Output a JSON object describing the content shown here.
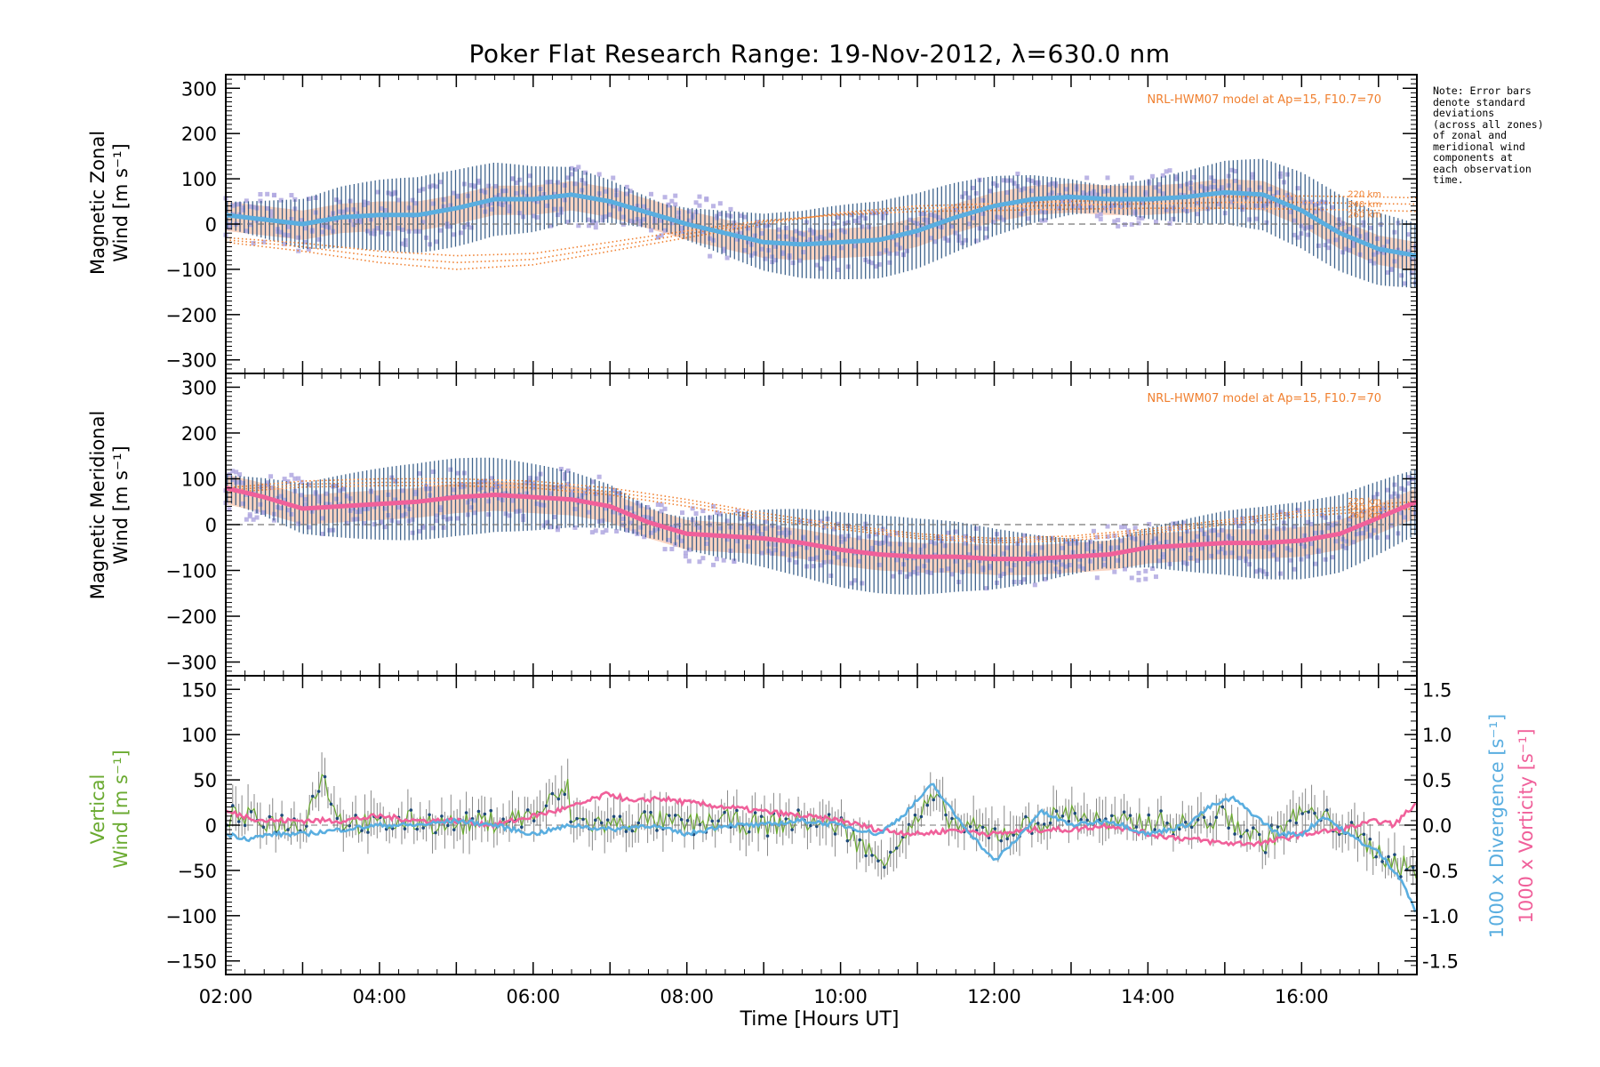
{
  "chart_data": [
    {
      "panel": "top",
      "type": "line",
      "title": "Poker Flat Research Range: 19-Nov-2012, λ=630.0 nm",
      "ylabel_line1": "Magnetic Zonal",
      "ylabel_line2": "Wind [m s⁻¹]",
      "model_label": "NRL-HWM07 model at Ap=15, F10.7=70",
      "altitude_labels": [
        "220 km",
        "240 km",
        "260 km"
      ],
      "ylim": [
        -330,
        330
      ],
      "yticks": [
        -300,
        -200,
        -100,
        0,
        100,
        200,
        300
      ],
      "xlim": [
        2.0,
        17.5
      ],
      "series": [
        {
          "role": "mean wind",
          "color": "#5aaee0",
          "x": [
            2.0,
            2.5,
            3.0,
            3.5,
            4.0,
            4.5,
            5.0,
            5.5,
            6.0,
            6.5,
            7.0,
            7.5,
            8.0,
            8.5,
            9.0,
            9.5,
            10.0,
            10.5,
            11.0,
            11.5,
            12.0,
            12.5,
            13.0,
            13.5,
            14.0,
            14.5,
            15.0,
            15.5,
            16.0,
            16.5,
            17.0,
            17.5
          ],
          "y": [
            20,
            10,
            0,
            15,
            20,
            20,
            35,
            55,
            55,
            65,
            50,
            25,
            0,
            -20,
            -40,
            -45,
            -40,
            -35,
            -15,
            15,
            40,
            55,
            60,
            55,
            55,
            60,
            70,
            65,
            30,
            -20,
            -55,
            -70
          ]
        },
        {
          "role": "HWM07 220 km",
          "color": "#f08030",
          "x": [
            2.0,
            3.0,
            4.0,
            5.0,
            6.0,
            7.0,
            8.0,
            9.0,
            10.0,
            11.0,
            12.0,
            13.0,
            14.0,
            15.0,
            16.0,
            17.0,
            17.5
          ],
          "y": [
            -40,
            -60,
            -85,
            -100,
            -90,
            -60,
            -30,
            0,
            25,
            40,
            45,
            50,
            55,
            60,
            62,
            60,
            58
          ]
        },
        {
          "role": "HWM07 240 km",
          "color": "#f08030",
          "x": [
            2.0,
            3.0,
            4.0,
            5.0,
            6.0,
            7.0,
            8.0,
            9.0,
            10.0,
            11.0,
            12.0,
            13.0,
            14.0,
            15.0,
            16.0,
            17.0,
            17.5
          ],
          "y": [
            -35,
            -50,
            -72,
            -85,
            -78,
            -50,
            -22,
            5,
            22,
            35,
            38,
            42,
            45,
            48,
            48,
            45,
            44
          ]
        },
        {
          "role": "HWM07 260 km",
          "color": "#f08030",
          "x": [
            2.0,
            3.0,
            4.0,
            5.0,
            6.0,
            7.0,
            8.0,
            9.0,
            10.0,
            11.0,
            12.0,
            13.0,
            14.0,
            15.0,
            16.0,
            17.0,
            17.5
          ],
          "y": [
            -30,
            -42,
            -60,
            -70,
            -65,
            -40,
            -15,
            8,
            20,
            28,
            30,
            33,
            35,
            35,
            33,
            30,
            28
          ]
        }
      ]
    },
    {
      "panel": "middle",
      "type": "line",
      "ylabel_line1": "Magnetic Meridional",
      "ylabel_line2": "Wind [m s⁻¹]",
      "model_label": "NRL-HWM07 model at Ap=15, F10.7=70",
      "altitude_labels": [
        "220 km",
        "240 km",
        "260 km"
      ],
      "ylim": [
        -330,
        330
      ],
      "yticks": [
        -300,
        -200,
        -100,
        0,
        100,
        200,
        300
      ],
      "xlim": [
        2.0,
        17.5
      ],
      "series": [
        {
          "role": "mean wind",
          "color": "#f0609a",
          "x": [
            2.0,
            2.5,
            3.0,
            3.5,
            4.0,
            4.5,
            5.0,
            5.5,
            6.0,
            6.5,
            7.0,
            7.5,
            8.0,
            8.5,
            9.0,
            9.5,
            10.0,
            10.5,
            11.0,
            11.5,
            12.0,
            12.5,
            13.0,
            13.5,
            14.0,
            14.5,
            15.0,
            15.5,
            16.0,
            16.5,
            17.0,
            17.5
          ],
          "y": [
            80,
            60,
            35,
            40,
            45,
            50,
            60,
            65,
            60,
            55,
            40,
            5,
            -20,
            -25,
            -30,
            -40,
            -55,
            -65,
            -70,
            -70,
            -75,
            -75,
            -70,
            -65,
            -50,
            -45,
            -40,
            -40,
            -35,
            -20,
            15,
            50
          ]
        },
        {
          "role": "HWM07 220 km",
          "color": "#f08030",
          "x": [
            2.0,
            3.0,
            4.0,
            5.0,
            6.0,
            7.0,
            8.0,
            9.0,
            10.0,
            11.0,
            12.0,
            13.0,
            14.0,
            15.0,
            16.0,
            17.0,
            17.5
          ],
          "y": [
            80,
            95,
            100,
            100,
            95,
            80,
            55,
            25,
            0,
            -20,
            -30,
            -25,
            -10,
            10,
            30,
            45,
            50
          ]
        },
        {
          "role": "HWM07 240 km",
          "color": "#f08030",
          "x": [
            2.0,
            3.0,
            4.0,
            5.0,
            6.0,
            7.0,
            8.0,
            9.0,
            10.0,
            11.0,
            12.0,
            13.0,
            14.0,
            15.0,
            16.0,
            17.0,
            17.5
          ],
          "y": [
            75,
            88,
            92,
            92,
            88,
            72,
            48,
            18,
            -5,
            -25,
            -35,
            -30,
            -15,
            5,
            25,
            38,
            42
          ]
        },
        {
          "role": "HWM07 260 km",
          "color": "#f08030",
          "x": [
            2.0,
            3.0,
            4.0,
            5.0,
            6.0,
            7.0,
            8.0,
            9.0,
            10.0,
            11.0,
            12.0,
            13.0,
            14.0,
            15.0,
            16.0,
            17.0,
            17.5
          ],
          "y": [
            70,
            82,
            85,
            85,
            80,
            65,
            40,
            12,
            -10,
            -30,
            -40,
            -35,
            -20,
            0,
            18,
            30,
            35
          ]
        }
      ]
    },
    {
      "panel": "bottom",
      "type": "line",
      "ylabel_line1": "Vertical",
      "ylabel_line2": "Wind [m s⁻¹]",
      "y2label_line1": "1000 x Divergence [s⁻¹]",
      "y2label_line2": "1000 x Vorticity [s⁻¹]",
      "xlabel": "Time [Hours UT]",
      "ylim": [
        -165,
        165
      ],
      "yticks": [
        -150,
        -100,
        -50,
        0,
        50,
        100,
        150
      ],
      "y2lim": [
        -1.65,
        1.65
      ],
      "y2ticks": [
        -1.5,
        -1.0,
        -0.5,
        0.0,
        0.5,
        1.0,
        1.5
      ],
      "y2ticklabels": [
        "-1.5",
        "-1.0",
        "-0.5",
        "0.0",
        "0.5",
        "1.0",
        "1.5"
      ],
      "xlim": [
        2.0,
        17.5
      ],
      "xticks": [
        2,
        4,
        6,
        8,
        10,
        12,
        14,
        16
      ],
      "xticklabels": [
        "02:00",
        "04:00",
        "06:00",
        "08:00",
        "10:00",
        "12:00",
        "14:00",
        "16:00"
      ],
      "series": [
        {
          "role": "vertical wind",
          "color": "#6aaa30",
          "x": [
            2.0,
            2.5,
            3.0,
            3.25,
            3.5,
            4.0,
            4.5,
            5.0,
            5.5,
            6.0,
            6.45,
            6.5,
            7.0,
            7.5,
            8.0,
            8.5,
            9.0,
            9.5,
            10.0,
            10.5,
            11.0,
            11.2,
            11.5,
            12.0,
            12.5,
            13.0,
            13.5,
            14.0,
            14.5,
            15.0,
            15.5,
            16.0,
            16.5,
            17.0,
            17.4
          ],
          "y": [
            10,
            5,
            0,
            55,
            5,
            0,
            5,
            0,
            5,
            10,
            40,
            5,
            0,
            5,
            0,
            5,
            0,
            5,
            0,
            -40,
            5,
            30,
            0,
            -10,
            0,
            15,
            0,
            5,
            0,
            10,
            -20,
            15,
            0,
            -30,
            -50
          ]
        },
        {
          "role": "divergence x1000",
          "color": "#5aaee0",
          "x": [
            2.0,
            2.3,
            2.6,
            3.0,
            3.5,
            4.0,
            4.5,
            5.0,
            5.5,
            6.0,
            6.5,
            7.0,
            7.5,
            8.0,
            8.5,
            9.0,
            9.5,
            10.0,
            10.5,
            10.8,
            11.2,
            11.5,
            11.8,
            12.0,
            12.3,
            12.6,
            13.0,
            13.5,
            14.0,
            14.5,
            14.8,
            15.1,
            15.4,
            15.7,
            16.0,
            16.3,
            16.6,
            17.0,
            17.3,
            17.5
          ],
          "y": [
            -0.1,
            -0.15,
            -0.1,
            -0.1,
            -0.05,
            0.0,
            0.0,
            0.05,
            0.0,
            -0.1,
            0.0,
            -0.05,
            0.0,
            -0.1,
            0.0,
            0.0,
            0.05,
            0.0,
            -0.1,
            0.1,
            0.45,
            0.1,
            -0.2,
            -0.4,
            -0.15,
            0.15,
            0.0,
            0.05,
            -0.1,
            0.0,
            0.2,
            0.3,
            0.1,
            -0.1,
            -0.1,
            0.1,
            -0.1,
            -0.3,
            -0.6,
            -1.0
          ]
        },
        {
          "role": "vorticity x1000",
          "color": "#f0609a",
          "x": [
            2.0,
            2.5,
            3.0,
            3.5,
            4.0,
            4.5,
            5.0,
            5.5,
            6.0,
            6.5,
            7.0,
            7.3,
            7.6,
            8.0,
            8.5,
            9.0,
            9.5,
            10.0,
            10.5,
            11.0,
            11.5,
            12.0,
            12.5,
            13.0,
            13.5,
            14.0,
            14.5,
            15.0,
            15.5,
            16.0,
            16.5,
            17.0,
            17.2,
            17.5
          ],
          "y": [
            0.15,
            0.05,
            0.05,
            0.05,
            0.1,
            0.05,
            0.05,
            0.0,
            0.1,
            0.2,
            0.35,
            0.25,
            0.3,
            0.25,
            0.2,
            0.15,
            0.1,
            0.05,
            -0.05,
            -0.1,
            -0.05,
            -0.1,
            -0.05,
            -0.05,
            0.0,
            -0.1,
            -0.15,
            -0.2,
            -0.2,
            -0.1,
            -0.05,
            0.05,
            0.0,
            0.25
          ]
        }
      ]
    }
  ],
  "note": "Note: Error bars\ndenote standard\ndeviations\n(across all zones)\nof zonal and\nmeridional wind\ncomponents at\neach observation\ntime.",
  "colors": {
    "zonal_mean": "#5aaee0",
    "meridional_mean": "#f0609a",
    "model": "#f08030",
    "errbar": "#1e4a7a",
    "zone_scatter": "#b0a8e0",
    "envelope": "#f6b090",
    "vertical": "#6aaa30",
    "divergence": "#5aaee0",
    "vorticity": "#f0609a"
  }
}
